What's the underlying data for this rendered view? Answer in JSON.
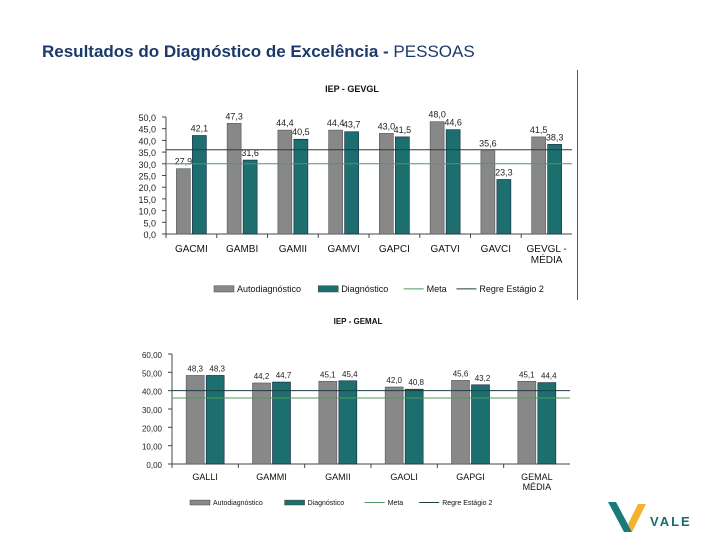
{
  "page": {
    "title_bold": "Resultados do Diagnóstico de Excelência -",
    "title_rest": " PESSOAS"
  },
  "brand": {
    "name": "VALE",
    "colors": {
      "teal": "#1a7a7a",
      "yellow": "#f2b230",
      "title": "#1a3a6b"
    }
  },
  "colors": {
    "auto": "#888888",
    "diag": "#1d6e6e",
    "meta": "#4e9a58",
    "regra": "#1e3e3e"
  },
  "chart_data": [
    {
      "type": "bar",
      "title": "IEP - GEVGL",
      "categories": [
        "GACMI",
        "GAMBI",
        "GAMII",
        "GAMVI",
        "GAPCI",
        "GATVI",
        "GAVCI",
        "GEVGL - MÉDIA"
      ],
      "category_labels": [
        [
          "GACMI"
        ],
        [
          "GAMBI"
        ],
        [
          "GAMII"
        ],
        [
          "GAMVI"
        ],
        [
          "GAPCI"
        ],
        [
          "GATVI"
        ],
        [
          "GAVCI"
        ],
        [
          "GEVGL -",
          "MÉDIA"
        ]
      ],
      "series": [
        {
          "name": "Autodiagnóstico",
          "values": [
            27.9,
            47.3,
            44.4,
            44.4,
            43.0,
            48.0,
            35.6,
            41.5
          ],
          "labels": [
            "27,9",
            "47,3",
            "44,4",
            "44,4",
            "43,0",
            "48,0",
            "35,6",
            "41,5"
          ]
        },
        {
          "name": "Diagnóstico",
          "values": [
            42.1,
            31.6,
            40.5,
            43.7,
            41.5,
            44.6,
            23.3,
            38.3
          ],
          "labels": [
            "42,1",
            "31,6",
            "40,5",
            "43,7",
            "41,5",
            "44,6",
            "23,3",
            "38,3"
          ]
        }
      ],
      "lines": [
        {
          "name": "Meta",
          "value": 30.0
        },
        {
          "name": "Regre Estágio 2",
          "value": 36.0
        }
      ],
      "yticks": [
        "50,0",
        "45,0",
        "40,0",
        "35,0",
        "30,0",
        "25,0",
        "20,0",
        "15,0",
        "10,0",
        "5,0",
        "0,0"
      ],
      "ylim": [
        0,
        50
      ],
      "legend": "bottom"
    },
    {
      "type": "bar",
      "title": "IEP - GEMAL",
      "categories": [
        "GALLI",
        "GAMMI",
        "GAMII",
        "GAOLI",
        "GAPGI",
        "GEMAL MÉDIA"
      ],
      "category_labels": [
        [
          "GALLI"
        ],
        [
          "GAMMI"
        ],
        [
          "GAMII"
        ],
        [
          "GAOLI"
        ],
        [
          "GAPGI"
        ],
        [
          "GEMAL",
          "MÉDIA"
        ]
      ],
      "series": [
        {
          "name": "Autodiagnóstico",
          "values": [
            48.3,
            44.2,
            45.1,
            42.0,
            45.6,
            45.1
          ],
          "labels": [
            "48,3",
            "44,2",
            "45,1",
            "42,0",
            "45,6",
            "45,1"
          ]
        },
        {
          "name": "Diagnóstico",
          "values": [
            48.3,
            44.7,
            45.4,
            40.8,
            43.2,
            44.4
          ],
          "labels": [
            "48,3",
            "44,7",
            "45,4",
            "40,8",
            "43,2",
            "44,4"
          ]
        }
      ],
      "lines": [
        {
          "name": "Meta",
          "value": 36.0
        },
        {
          "name": "Regre Estágio 2",
          "value": 40.0
        }
      ],
      "yticks": [
        "60,00",
        "50,00",
        "40,00",
        "30,00",
        "20,00",
        "10,00",
        "0,00"
      ],
      "ylim": [
        0,
        60
      ],
      "legend": "bottom"
    }
  ]
}
